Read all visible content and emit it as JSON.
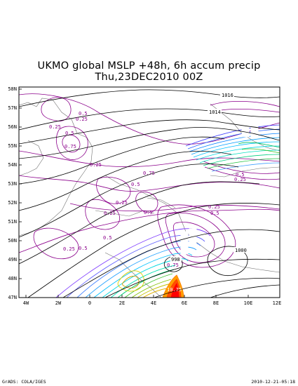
{
  "title": {
    "line1": "UKMO global MSLP +48h, 6h accum precip",
    "line2": "Thu,23DEC2010 00Z"
  },
  "map": {
    "lat_labels": [
      "58N",
      "57N",
      "56N",
      "55N",
      "54N",
      "53N",
      "52N",
      "51N",
      "50N",
      "49N",
      "48N",
      "47N"
    ],
    "lon_labels": [
      "4W",
      "2W",
      "0",
      "2E",
      "4E",
      "6E",
      "8E",
      "10E",
      "12E"
    ],
    "isobar_labels": [
      "1016",
      "1014",
      "1000",
      "998"
    ],
    "precip_labels": [
      {
        "text": "0.5",
        "color": "#8b008b"
      },
      {
        "text": "0.25",
        "color": "#8b008b"
      },
      {
        "text": "0.25",
        "color": "#8b008b"
      },
      {
        "text": "0.5",
        "color": "#8b008b"
      },
      {
        "text": "0.75",
        "color": "#8b008b"
      },
      {
        "text": "0.25",
        "color": "#8b008b"
      },
      {
        "text": "0.75",
        "color": "#8b008b"
      },
      {
        "text": "0.5",
        "color": "#8b008b"
      },
      {
        "text": "0.25",
        "color": "#8b008b"
      },
      {
        "text": "0.5",
        "color": "#8b008b"
      },
      {
        "text": "0.5",
        "color": "#8b008b"
      },
      {
        "text": "0.25",
        "color": "#8b008b"
      },
      {
        "text": "0.5",
        "color": "#8b008b"
      },
      {
        "text": "0.25",
        "color": "#8b008b"
      },
      {
        "text": "0.5",
        "color": "#8b008b"
      },
      {
        "text": "0.25",
        "color": "#8b008b"
      },
      {
        "text": "0.25",
        "color": "#8b008b"
      },
      {
        "text": "0.5",
        "color": "#8b008b"
      },
      {
        "text": "0.75",
        "color": "#8b008b"
      },
      {
        "text": "10.75",
        "color": "#ffffff"
      }
    ],
    "colors": {
      "isobar": "#000000",
      "precip_low": "#8b008b",
      "precip_mid": "#00bfff",
      "precip_high": "#ff0000",
      "coast": "#606060"
    }
  },
  "footer": {
    "left": "GrADS: COLA/IGES",
    "right": "2010-12-21-05:18"
  }
}
